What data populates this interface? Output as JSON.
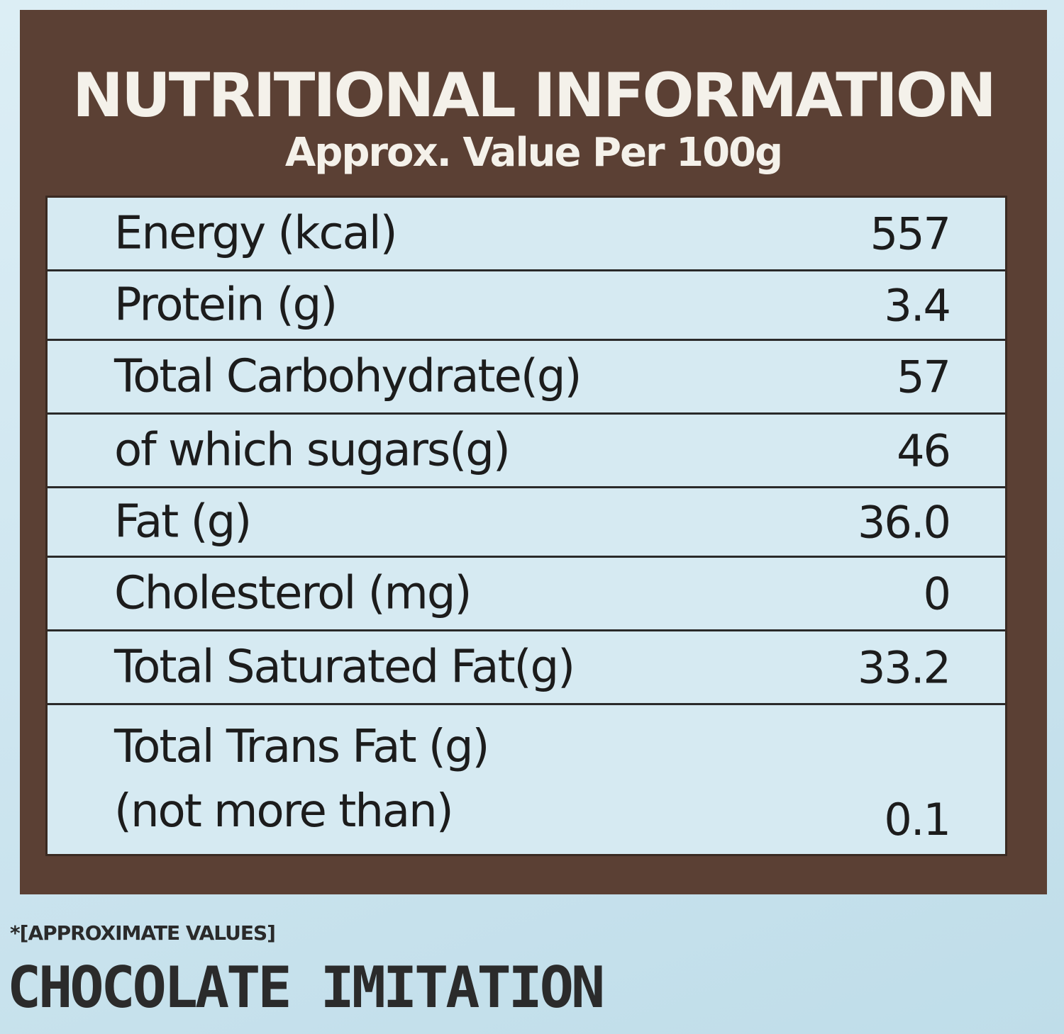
{
  "header": {
    "title": "NUTRITIONAL INFORMATION",
    "subtitle": "Approx. Value Per 100g"
  },
  "nutrition_rows": [
    {
      "name": "Energy (kcal)",
      "value": "557"
    },
    {
      "name": "Protein (g)",
      "value": "3.4"
    },
    {
      "name": "Total Carbohydrate(g)",
      "value": "57"
    },
    {
      "name": "of which sugars(g)",
      "value": "46"
    },
    {
      "name": "Fat (g)",
      "value": "36.0"
    },
    {
      "name": "Cholesterol (mg)",
      "value": "0"
    },
    {
      "name": "Total Saturated Fat(g)",
      "value": "33.2"
    },
    {
      "name": "Total Trans Fat (g)",
      "name_line2": "(not more than)",
      "value": "0.1"
    }
  ],
  "footnote": "*[APPROXIMATE VALUES]",
  "product_name": "CHOCOLATE IMITATION",
  "colors": {
    "panel_brown": "#5b4034",
    "table_background": "#d6eaf2",
    "page_background": "#cfe6f0",
    "text_dark": "#1c1c1c",
    "text_light": "#f4f1ea"
  }
}
